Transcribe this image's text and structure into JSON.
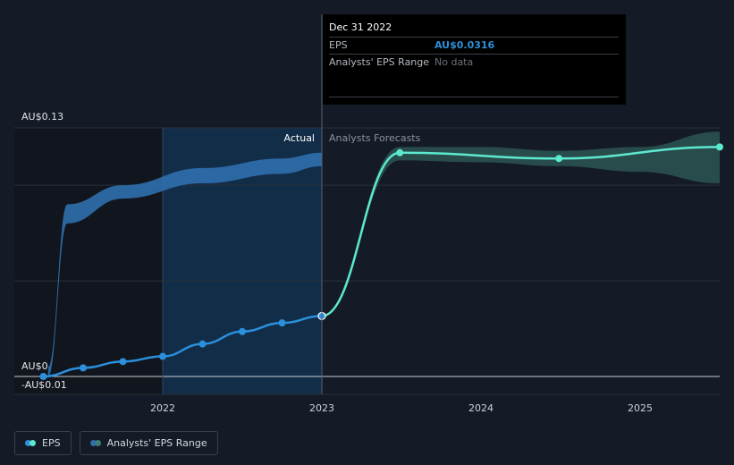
{
  "chart_data": {
    "type": "line",
    "title": "",
    "y_axis_labels": [
      "AU$0.13",
      "AU$0",
      "-AU$0.01"
    ],
    "ylim": [
      -0.01,
      0.13
    ],
    "x_ticks": [
      {
        "label": "2022",
        "x": 2022.0
      },
      {
        "label": "2023",
        "x": 2023.0
      },
      {
        "label": "2024",
        "x": 2024.0
      },
      {
        "label": "2025",
        "x": 2025.0
      }
    ],
    "region_labels": {
      "actual": "Actual",
      "forecast": "Analysts Forecasts"
    },
    "eps_actual": [
      {
        "x": 2021.25,
        "y": 0.0
      },
      {
        "x": 2021.5,
        "y": 0.0045
      },
      {
        "x": 2021.75,
        "y": 0.0078
      },
      {
        "x": 2022.0,
        "y": 0.0105
      },
      {
        "x": 2022.25,
        "y": 0.017
      },
      {
        "x": 2022.5,
        "y": 0.0235
      },
      {
        "x": 2022.75,
        "y": 0.028
      },
      {
        "x": 2023.0,
        "y": 0.0316
      }
    ],
    "eps_forecast": [
      {
        "x": 2023.0,
        "y": 0.0316
      },
      {
        "x": 2023.49,
        "y": 0.117
      },
      {
        "x": 2024.49,
        "y": 0.114
      },
      {
        "x": 2025.5,
        "y": 0.12
      }
    ],
    "analyst_range_past": {
      "x": [
        2021.28,
        2021.4,
        2021.75,
        2022.25,
        2022.75,
        2023.0
      ],
      "high": [
        0.005,
        0.09,
        0.1,
        0.109,
        0.114,
        0.117
      ],
      "low": [
        0.0,
        0.08,
        0.093,
        0.101,
        0.106,
        0.11
      ]
    },
    "analyst_range_forecast": {
      "x": [
        2023.0,
        2023.49,
        2024.0,
        2024.49,
        2025.0,
        2025.5
      ],
      "high": [
        0.031,
        0.12,
        0.12,
        0.118,
        0.12,
        0.128
      ],
      "low": [
        0.031,
        0.113,
        0.112,
        0.11,
        0.107,
        0.101
      ]
    },
    "colors": {
      "eps_actual": "#2b8fdc",
      "eps_forecast": "#5de8d0",
      "range_past": "#2f6fae",
      "range_forecast": "#2f5e5a",
      "actual_shade": "#123454"
    }
  },
  "tooltip": {
    "date": "Dec 31 2022",
    "eps_label": "EPS",
    "eps_value": "AU$0.0316",
    "range_label": "Analysts' EPS Range",
    "range_value": "No data"
  },
  "legend": {
    "eps_label": "EPS",
    "range_label": "Analysts' EPS Range",
    "eps_color_a": "#2f8fd8",
    "eps_color_b": "#5de8d0",
    "range_color_a": "#2f6fae",
    "range_color_b": "#3a7f78"
  }
}
